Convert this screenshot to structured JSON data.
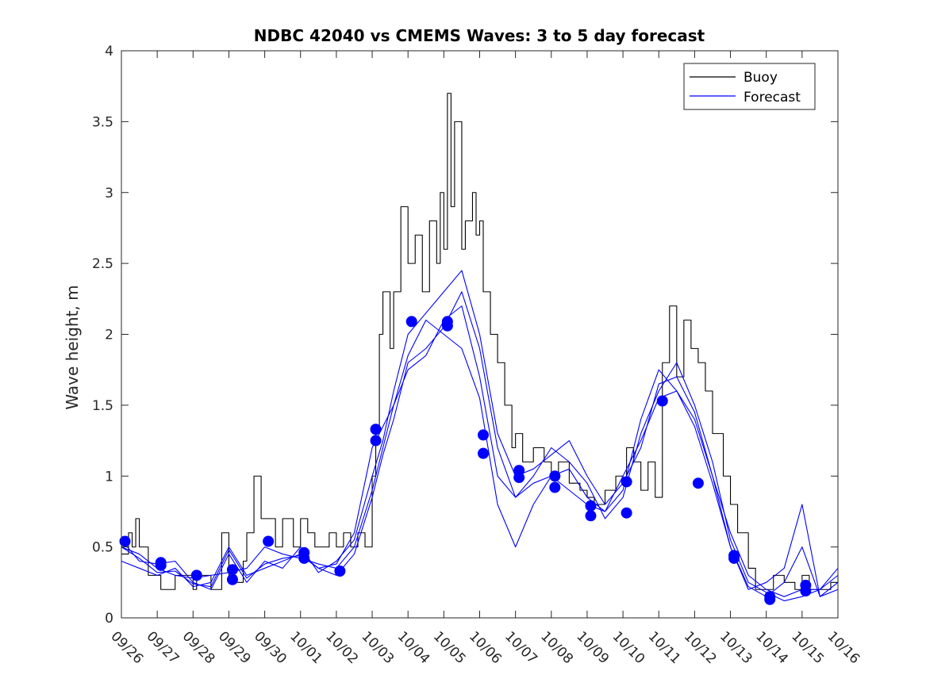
{
  "chart_data": {
    "type": "line",
    "title": "NDBC 42040 vs CMEMS Waves: 3 to 5 day forecast",
    "xlabel": "",
    "ylabel": "Wave height, m",
    "xlim": [
      0,
      20
    ],
    "ylim": [
      0,
      4
    ],
    "x_tick_labels": [
      "09/26",
      "09/27",
      "09/28",
      "09/29",
      "09/30",
      "10/01",
      "10/02",
      "10/03",
      "10/04",
      "10/05",
      "10/06",
      "10/07",
      "10/08",
      "10/09",
      "10/10",
      "10/11",
      "10/12",
      "10/13",
      "10/14",
      "10/15",
      "10/16"
    ],
    "y_ticks": [
      0,
      0.5,
      1,
      1.5,
      2,
      2.5,
      3,
      3.5,
      4
    ],
    "y_tick_labels": [
      "0",
      "0.5",
      "1",
      "1.5",
      "2",
      "2.5",
      "3",
      "3.5",
      "4"
    ],
    "legend": {
      "placement": "top-right",
      "entries": [
        {
          "name": "Buoy",
          "color": "#000000"
        },
        {
          "name": "Forecast",
          "color": "#0000ff"
        }
      ]
    },
    "colors": {
      "buoy": "#000000",
      "forecast": "#0000ff",
      "axes": "#262626"
    },
    "series": [
      {
        "name": "Buoy",
        "color": "#000000",
        "step": true,
        "x": [
          0,
          0.2,
          0.3,
          0.4,
          0.5,
          0.6,
          0.75,
          0.9,
          1.0,
          1.1,
          1.5,
          1.8,
          2.0,
          2.1,
          2.3,
          2.5,
          2.8,
          3.0,
          3.2,
          3.4,
          3.5,
          3.7,
          3.9,
          4.0,
          4.1,
          4.3,
          4.5,
          4.8,
          5.0,
          5.2,
          5.4,
          5.6,
          5.8,
          6.0,
          6.2,
          6.4,
          6.6,
          6.8,
          7.0,
          7.1,
          7.2,
          7.3,
          7.5,
          7.6,
          7.8,
          8.0,
          8.2,
          8.4,
          8.6,
          8.8,
          8.9,
          9.0,
          9.1,
          9.2,
          9.3,
          9.5,
          9.6,
          9.8,
          9.9,
          10.0,
          10.1,
          10.3,
          10.5,
          10.7,
          10.9,
          11.0,
          11.2,
          11.5,
          11.8,
          12.0,
          12.2,
          12.5,
          12.8,
          13.0,
          13.2,
          13.5,
          13.8,
          14.0,
          14.1,
          14.3,
          14.5,
          14.7,
          14.9,
          15.1,
          15.3,
          15.5,
          15.7,
          15.9,
          16.1,
          16.3,
          16.5,
          16.8,
          17.0,
          17.2,
          17.5,
          17.7,
          18.0,
          18.2,
          18.5,
          18.8,
          19.0,
          19.2,
          19.5,
          19.8,
          20.0
        ],
        "values": [
          0.45,
          0.6,
          0.5,
          0.7,
          0.5,
          0.5,
          0.3,
          0.3,
          0.3,
          0.2,
          0.3,
          0.3,
          0.2,
          0.3,
          0.3,
          0.2,
          0.6,
          0.3,
          0.25,
          0.4,
          0.6,
          1.0,
          0.7,
          0.7,
          0.7,
          0.5,
          0.7,
          0.5,
          0.7,
          0.6,
          0.5,
          0.5,
          0.6,
          0.5,
          0.6,
          0.5,
          0.6,
          0.5,
          1.0,
          1.3,
          2.0,
          2.3,
          1.9,
          2.3,
          2.9,
          2.5,
          2.7,
          2.3,
          2.8,
          2.5,
          3.0,
          2.6,
          3.7,
          2.9,
          3.5,
          2.6,
          2.8,
          3.0,
          2.7,
          2.8,
          2.3,
          2.0,
          1.8,
          1.5,
          1.2,
          1.3,
          1.1,
          1.2,
          1.1,
          1.0,
          1.1,
          0.95,
          0.9,
          0.85,
          0.8,
          0.9,
          1.0,
          0.95,
          1.2,
          1.1,
          0.9,
          1.1,
          0.85,
          1.8,
          2.2,
          1.7,
          2.1,
          1.9,
          1.8,
          1.6,
          1.3,
          1.0,
          0.8,
          0.6,
          0.35,
          0.2,
          0.2,
          0.3,
          0.25,
          0.2,
          0.3,
          0.2,
          0.2,
          0.25,
          0.3
        ]
      },
      {
        "name": "Forecast run 1",
        "color": "#0000ff",
        "x": [
          0,
          0.5,
          1.0,
          1.5,
          2.0,
          2.5,
          3.0,
          3.5,
          4.0,
          4.5,
          5.0,
          5.5,
          6.0,
          6.5,
          7.0,
          7.3,
          7.6,
          8.0,
          8.5,
          9.0,
          9.5,
          10.0,
          10.5,
          11.0,
          11.5,
          12.0,
          12.5,
          13.0,
          13.5,
          14.0,
          14.5,
          15.0,
          15.5,
          16.0,
          16.5,
          17.0,
          17.5,
          18.0,
          18.5,
          19.0,
          19.5,
          20.0
        ],
        "values": [
          0.5,
          0.45,
          0.35,
          0.3,
          0.28,
          0.3,
          0.32,
          0.35,
          0.5,
          0.45,
          0.42,
          0.38,
          0.35,
          0.5,
          0.9,
          1.2,
          1.5,
          1.75,
          1.85,
          2.1,
          2.2,
          1.7,
          1.0,
          0.85,
          0.95,
          1.0,
          0.9,
          0.8,
          0.75,
          0.9,
          1.4,
          1.75,
          1.6,
          1.4,
          1.0,
          0.6,
          0.3,
          0.2,
          0.15,
          0.2,
          0.2,
          0.3
        ]
      },
      {
        "name": "Forecast run 2",
        "color": "#0000ff",
        "x": [
          0,
          0.5,
          1.0,
          1.5,
          2.0,
          2.5,
          3.0,
          3.5,
          4.0,
          4.5,
          5.0,
          5.5,
          6.0,
          6.5,
          7.0,
          7.3,
          7.6,
          8.0,
          8.5,
          9.0,
          9.5,
          10.0,
          10.5,
          11.0,
          11.5,
          12.0,
          12.5,
          13.0,
          13.5,
          14.0,
          14.5,
          15.0,
          15.5,
          16.0,
          16.5,
          17.0,
          17.5,
          18.0,
          18.5,
          19.0,
          19.5,
          20.0
        ],
        "values": [
          0.4,
          0.35,
          0.3,
          0.35,
          0.22,
          0.25,
          0.5,
          0.3,
          0.35,
          0.4,
          0.45,
          0.35,
          0.3,
          0.45,
          0.85,
          1.15,
          1.4,
          1.8,
          1.9,
          2.05,
          2.3,
          1.9,
          1.2,
          0.85,
          1.0,
          1.2,
          1.1,
          0.95,
          0.7,
          0.85,
          1.3,
          1.6,
          1.8,
          1.5,
          1.1,
          0.55,
          0.25,
          0.18,
          0.12,
          0.15,
          0.2,
          0.35
        ]
      },
      {
        "name": "Forecast run 3",
        "color": "#0000ff",
        "x": [
          0,
          0.5,
          1.0,
          1.5,
          2.0,
          2.5,
          3.0,
          3.5,
          4.0,
          4.5,
          5.0,
          5.5,
          6.0,
          6.5,
          7.0,
          7.3,
          7.6,
          8.0,
          8.5,
          9.0,
          9.5,
          10.0,
          10.5,
          11.0,
          11.5,
          12.0,
          12.5,
          13.0,
          13.5,
          14.0,
          14.5,
          15.0,
          15.5,
          16.0,
          16.5,
          17.0,
          17.5,
          18.0,
          18.5,
          19.0,
          19.5,
          20.0
        ],
        "values": [
          0.55,
          0.4,
          0.38,
          0.4,
          0.25,
          0.2,
          0.45,
          0.25,
          0.4,
          0.35,
          0.5,
          0.32,
          0.4,
          0.55,
          1.0,
          1.25,
          1.6,
          2.0,
          2.15,
          2.3,
          2.45,
          2.0,
          1.3,
          1.0,
          1.05,
          1.15,
          1.25,
          1.0,
          0.8,
          0.95,
          1.2,
          1.65,
          1.7,
          1.45,
          1.0,
          0.5,
          0.22,
          0.15,
          0.25,
          0.5,
          0.15,
          0.25
        ]
      },
      {
        "name": "Forecast run 4",
        "color": "#0000ff",
        "x": [
          0,
          0.5,
          1.0,
          1.5,
          2.0,
          2.5,
          3.0,
          3.5,
          4.0,
          4.5,
          5.0,
          5.5,
          6.0,
          6.5,
          7.0,
          7.3,
          7.6,
          8.0,
          8.5,
          9.0,
          9.5,
          10.0,
          10.5,
          11.0,
          11.5,
          12.0,
          12.5,
          13.0,
          13.5,
          14.0,
          14.5,
          15.0,
          15.5,
          16.0,
          16.5,
          17.0,
          17.5,
          18.0,
          18.5,
          19.0,
          19.5,
          20.0
        ],
        "values": [
          0.5,
          0.42,
          0.32,
          0.33,
          0.24,
          0.22,
          0.48,
          0.28,
          0.38,
          0.42,
          0.44,
          0.35,
          0.38,
          0.6,
          1.2,
          1.35,
          1.5,
          1.85,
          2.1,
          2.0,
          1.9,
          1.55,
          0.8,
          0.5,
          0.8,
          1.0,
          1.05,
          0.85,
          0.75,
          1.0,
          1.25,
          1.55,
          1.6,
          1.35,
          0.95,
          0.5,
          0.2,
          0.25,
          0.35,
          0.8,
          0.15,
          0.2
        ]
      }
    ],
    "markers": {
      "name": "Forecast markers",
      "color": "#0000ff",
      "x": [
        0.1,
        1.1,
        1.1,
        2.1,
        3.1,
        3.1,
        4.1,
        5.1,
        5.1,
        6.1,
        7.1,
        7.1,
        8.1,
        9.1,
        9.1,
        10.1,
        10.1,
        11.1,
        11.1,
        12.1,
        12.1,
        13.1,
        13.1,
        14.1,
        14.1,
        15.1,
        16.1,
        17.1,
        17.1,
        18.1,
        18.1,
        19.1,
        19.1
      ],
      "values": [
        0.54,
        0.39,
        0.37,
        0.3,
        0.34,
        0.27,
        0.54,
        0.46,
        0.42,
        0.33,
        1.33,
        1.25,
        2.09,
        2.09,
        2.06,
        1.29,
        1.16,
        1.04,
        0.99,
        1.0,
        0.92,
        0.79,
        0.72,
        0.96,
        0.74,
        1.53,
        0.95,
        0.44,
        0.42,
        0.15,
        0.13,
        0.23,
        0.19
      ]
    }
  }
}
